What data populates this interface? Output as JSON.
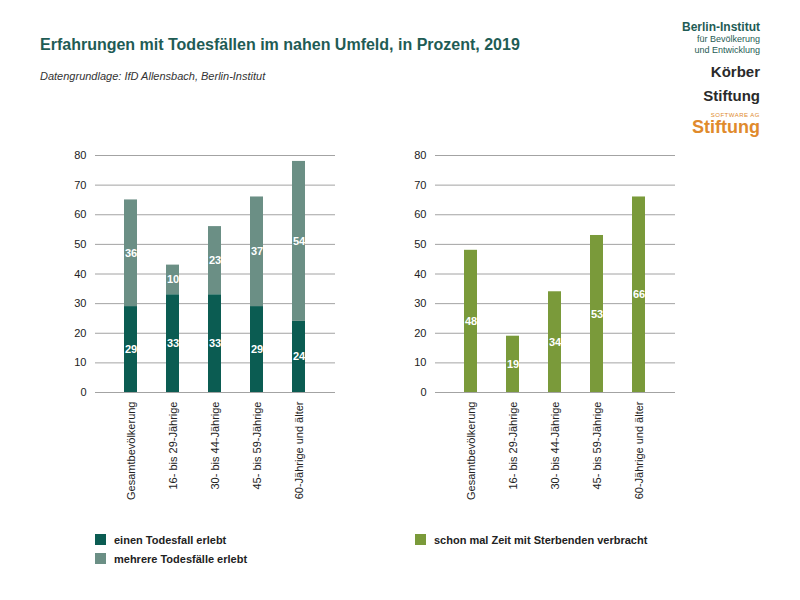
{
  "title": "Erfahrungen mit Todesfällen im nahen Umfeld, in Prozent, 2019",
  "subtitle": "Datengrundlage: IfD Allensbach, Berlin-Institut",
  "logos": [
    "Berlin-Institut",
    "für Bevölkerung",
    "und Entwicklung",
    "Körber",
    "Stiftung",
    "SOFTWARE AG",
    "Stiftung"
  ],
  "chart_data": [
    {
      "type": "bar",
      "categories": [
        "Gesamtbevölkerung",
        "16- bis 29-Jährige",
        "30- bis 44-Jährige",
        "45- bis 59-Jährige",
        "60-Jährige und älter"
      ],
      "series": [
        {
          "name": "einen Todesfall erlebt",
          "color": "#0b5c52",
          "values": [
            29,
            33,
            33,
            29,
            24
          ]
        },
        {
          "name": "mehrere Todesfälle erlebt",
          "color": "#6b8f85",
          "values": [
            36,
            10,
            23,
            37,
            54
          ]
        }
      ],
      "stacked": true,
      "ylim": [
        0,
        80
      ],
      "yticks": [
        0,
        10,
        20,
        30,
        40,
        50,
        60,
        70,
        80
      ],
      "grid": true,
      "data_labels": true,
      "legend": "bottom-left"
    },
    {
      "type": "bar",
      "categories": [
        "Gesamtbevölkerung",
        "16- bis 29-Jährige",
        "30- bis 44-Jährige",
        "45- bis 59-Jährige",
        "60-Jährige und älter"
      ],
      "series": [
        {
          "name": "schon mal Zeit mit Sterbenden verbracht",
          "color": "#7a9a3a",
          "values": [
            48,
            19,
            34,
            53,
            66
          ]
        }
      ],
      "ylim": [
        0,
        80
      ],
      "yticks": [
        0,
        10,
        20,
        30,
        40,
        50,
        60,
        70,
        80
      ],
      "grid": true,
      "data_labels": true,
      "legend": "bottom-left"
    }
  ]
}
